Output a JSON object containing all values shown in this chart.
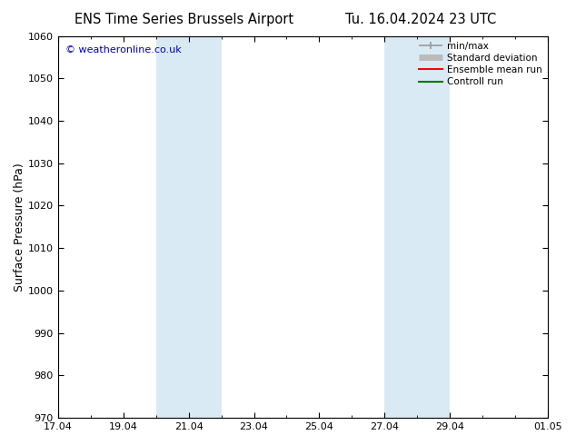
{
  "title_left": "ENS Time Series Brussels Airport",
  "title_right": "Tu. 16.04.2024 23 UTC",
  "ylabel": "Surface Pressure (hPa)",
  "ylim": [
    970,
    1060
  ],
  "yticks": [
    970,
    980,
    990,
    1000,
    1010,
    1020,
    1030,
    1040,
    1050,
    1060
  ],
  "xlim": [
    0,
    15
  ],
  "xtick_positions": [
    0,
    2,
    4,
    6,
    8,
    10,
    12,
    15
  ],
  "xtick_labels": [
    "17.04",
    "19.04",
    "21.04",
    "23.04",
    "25.04",
    "27.04",
    "29.04",
    "01.05"
  ],
  "shaded_bands": [
    {
      "start_day": 3.0,
      "end_day": 5.0
    },
    {
      "start_day": 10.0,
      "end_day": 12.0
    }
  ],
  "shaded_color": "#daeaf5",
  "watermark_text": "© weatheronline.co.uk",
  "watermark_color": "#0000bb",
  "background_color": "#ffffff",
  "plot_bg_color": "#ffffff",
  "legend_entries": [
    {
      "label": "min/max",
      "color": "#999999",
      "lw": 1.2
    },
    {
      "label": "Standard deviation",
      "color": "#bbbbbb",
      "lw": 5
    },
    {
      "label": "Ensemble mean run",
      "color": "#ff0000",
      "lw": 1.5
    },
    {
      "label": "Controll run",
      "color": "#007700",
      "lw": 1.5
    }
  ],
  "tick_direction": "in",
  "title_fontsize": 10.5,
  "label_fontsize": 9,
  "tick_fontsize": 8,
  "watermark_fontsize": 8,
  "legend_fontsize": 7.5
}
